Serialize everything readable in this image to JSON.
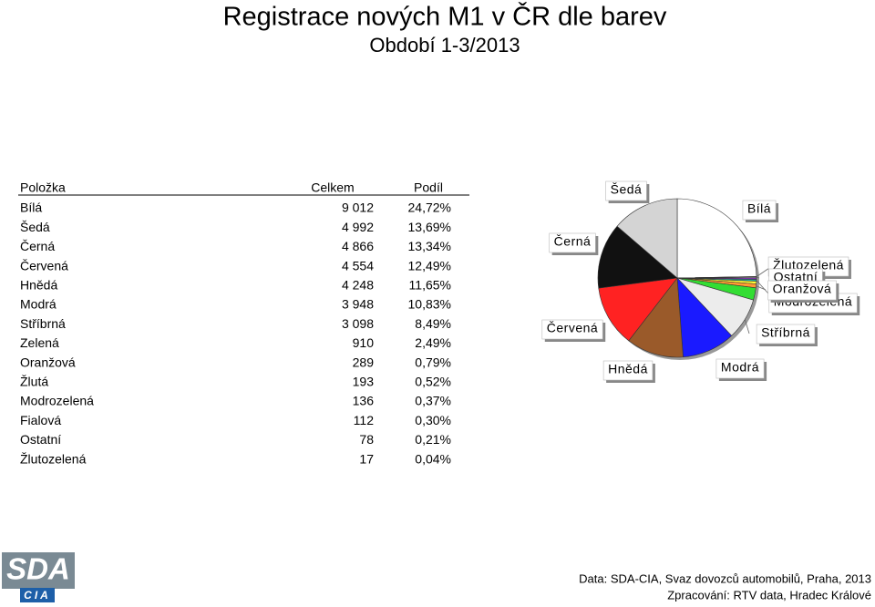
{
  "title": "Registrace nových M1 v ČR dle barev",
  "subtitle": "Období 1-3/2013",
  "table": {
    "header": [
      "Položka",
      "Celkem",
      "Podíl"
    ],
    "rows": [
      [
        "Bílá",
        "9 012",
        "24,72%"
      ],
      [
        "Šedá",
        "4 992",
        "13,69%"
      ],
      [
        "Černá",
        "4 866",
        "13,34%"
      ],
      [
        "Červená",
        "4 554",
        "12,49%"
      ],
      [
        "Hnědá",
        "4 248",
        "11,65%"
      ],
      [
        "Modrá",
        "3 948",
        "10,83%"
      ],
      [
        "Stříbrná",
        "3 098",
        "8,49%"
      ],
      [
        "Zelená",
        "910",
        "2,49%"
      ],
      [
        "Oranžová",
        "289",
        "0,79%"
      ],
      [
        "Žlutá",
        "193",
        "0,52%"
      ],
      [
        "Modrozelená",
        "136",
        "0,37%"
      ],
      [
        "Fialová",
        "112",
        "0,30%"
      ],
      [
        "Ostatní",
        "78",
        "0,21%"
      ],
      [
        "Žlutozelená",
        "17",
        "0,04%"
      ]
    ]
  },
  "chart_data": {
    "type": "pie",
    "categories": [
      "Bílá",
      "Žlutozelená",
      "Ostatní",
      null,
      "Modrozelená",
      null,
      "Oranžová",
      null,
      "Stříbrná",
      "Modrá",
      "Hnědá",
      "Červená",
      "Černá",
      "Šedá"
    ],
    "values": [
      9012,
      17,
      78,
      112,
      136,
      193,
      289,
      910,
      3098,
      3948,
      4248,
      4554,
      4866,
      4992
    ],
    "colors": [
      "#ffffff",
      "#9acd32",
      "#c0c0c0",
      "#9933cc",
      "#20b2aa",
      "#ffff33",
      "#ff9933",
      "#33dd33",
      "#ececec",
      "#1a1aff",
      "#9a5a2a",
      "#ff2222",
      "#111111",
      "#d4d4d4"
    ]
  },
  "footer": {
    "source": "Data: SDA-CIA, Svaz dovozců automobilů, Praha, 2013",
    "processed": "Zpracování: RTV data, Hradec Králové"
  },
  "logo": {
    "top": "SDA",
    "bottom": "CIA"
  }
}
